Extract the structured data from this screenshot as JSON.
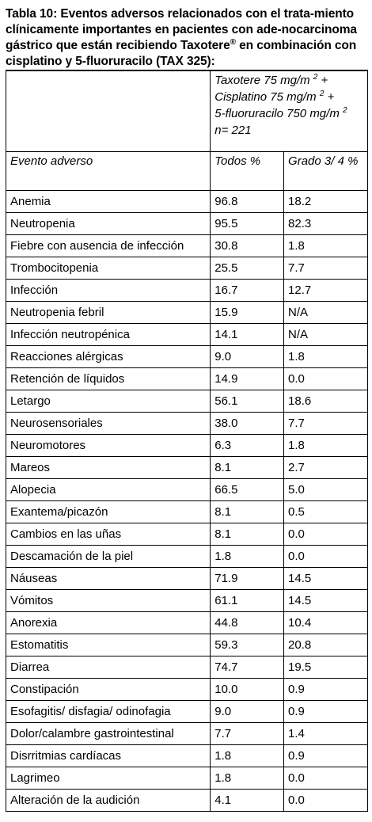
{
  "caption": {
    "text": "Tabla 10: Eventos adversos relacionados con el trata-miento clínicamente importantes en pacientes con ade-nocarcinoma gástrico que están recibiendo Taxotere",
    "reg": "®",
    "text_after": " en combinación con cisplatino y 5-fluoruracilo (TAX 325):"
  },
  "treatment": {
    "line1": "Taxotere 75 mg/m",
    "line1_sup": "2",
    "line1_tail": " +",
    "line2": "Cisplatino 75 mg/m",
    "line2_sup": "2",
    "line2_tail": " +",
    "line3": "5-fluoruracilo 750 mg/m",
    "line3_sup": "2",
    "line4": "n= 221"
  },
  "columns": {
    "event": "Evento adverso",
    "all": "Todos %",
    "grade": "Grado 3/ 4 %"
  },
  "rows": [
    {
      "event": "Anemia",
      "all": "96.8",
      "grade": "18.2"
    },
    {
      "event": "Neutropenia",
      "all": "95.5",
      "grade": "82.3"
    },
    {
      "event": "Fiebre con ausencia de infección",
      "all": "30.8",
      "grade": "1.8"
    },
    {
      "event": "Trombocitopenia",
      "all": "25.5",
      "grade": "7.7"
    },
    {
      "event": "Infección",
      "all": "16.7",
      "grade": "12.7"
    },
    {
      "event": "Neutropenia febril",
      "all": "15.9",
      "grade": "N/A"
    },
    {
      "event": "Infección neutropénica",
      "all": "14.1",
      "grade": "N/A"
    },
    {
      "event": "Reacciones alérgicas",
      "all": "9.0",
      "grade": "1.8"
    },
    {
      "event": "Retención de líquidos",
      "all": "14.9",
      "grade": "0.0"
    },
    {
      "event": "Letargo",
      "all": "56.1",
      "grade": "18.6"
    },
    {
      "event": "Neurosensoriales",
      "all": "38.0",
      "grade": "7.7"
    },
    {
      "event": "Neuromotores",
      "all": "6.3",
      "grade": "1.8"
    },
    {
      "event": "Mareos",
      "all": "8.1",
      "grade": "2.7"
    },
    {
      "event": "Alopecia",
      "all": "66.5",
      "grade": "5.0"
    },
    {
      "event": "Exantema/picazón",
      "all": "8.1",
      "grade": "0.5"
    },
    {
      "event": "Cambios en las uñas",
      "all": "8.1",
      "grade": "0.0"
    },
    {
      "event": "Descamación de la piel",
      "all": "1.8",
      "grade": "0.0"
    },
    {
      "event": "Náuseas",
      "all": "71.9",
      "grade": "14.5"
    },
    {
      "event": "Vómitos",
      "all": "61.1",
      "grade": "14.5"
    },
    {
      "event": "Anorexia",
      "all": "44.8",
      "grade": "10.4"
    },
    {
      "event": "Estomatitis",
      "all": "59.3",
      "grade": "20.8"
    },
    {
      "event": "Diarrea",
      "all": "74.7",
      "grade": "19.5"
    },
    {
      "event": "Constipación",
      "all": "10.0",
      "grade": "0.9"
    },
    {
      "event": "Esofagitis/ disfagia/ odinofagia",
      "all": "9.0",
      "grade": "0.9"
    },
    {
      "event": "Dolor/calambre gastrointestinal",
      "all": "7.7",
      "grade": "1.4"
    },
    {
      "event": "Disrritmias cardíacas",
      "all": "1.8",
      "grade": "0.9"
    },
    {
      "event": "Lagrimeo",
      "all": "1.8",
      "grade": "0.0"
    },
    {
      "event": "Alteración de la audición",
      "all": "4.1",
      "grade": "0.0"
    }
  ]
}
